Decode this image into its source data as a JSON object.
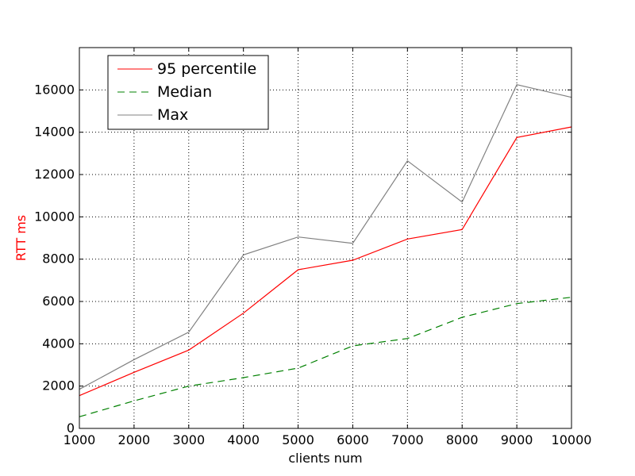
{
  "chart_data": {
    "type": "line",
    "xlabel": "clients num",
    "ylabel": "RTT ms",
    "ylabel_color": "#ff0000",
    "xlim": [
      1000,
      10000
    ],
    "ylim": [
      0,
      18000
    ],
    "x_ticks": [
      1000,
      2000,
      3000,
      4000,
      5000,
      6000,
      7000,
      8000,
      9000,
      10000
    ],
    "y_ticks": [
      0,
      2000,
      4000,
      6000,
      8000,
      10000,
      12000,
      14000,
      16000
    ],
    "grid": true,
    "legend_position": "top-left",
    "x": [
      1000,
      2000,
      3000,
      4000,
      5000,
      6000,
      7000,
      8000,
      9000,
      10000
    ],
    "series": [
      {
        "name": "95 percentile",
        "color": "#ff0000",
        "style": "solid",
        "values": [
          1550,
          2650,
          3700,
          5450,
          7500,
          7950,
          8950,
          9400,
          13750,
          14250
        ]
      },
      {
        "name": "Median",
        "color": "#008000",
        "style": "dashed",
        "values": [
          550,
          1300,
          2000,
          2400,
          2850,
          3900,
          4250,
          5250,
          5900,
          6200
        ]
      },
      {
        "name": "Max",
        "color": "#808080",
        "style": "solid",
        "values": [
          1850,
          3250,
          4550,
          8200,
          9050,
          8750,
          12650,
          10700,
          16250,
          15650
        ]
      }
    ]
  }
}
